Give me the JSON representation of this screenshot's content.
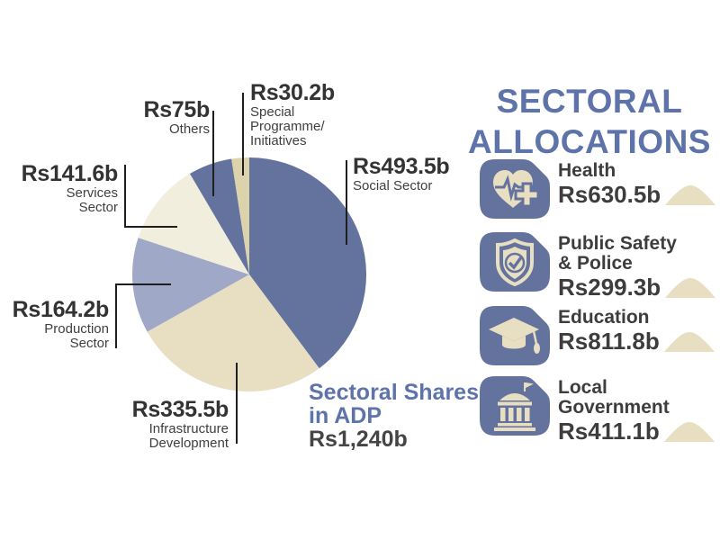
{
  "palette": {
    "slice_blue": "#64739e",
    "slice_lavender": "#a0a8c8",
    "slice_beige": "#e8dfc2",
    "slice_cream": "#f2eedd",
    "slice_tan": "#dcd2ab",
    "heading_blue": "#5d73a9",
    "text_dark": "#3d3d3d",
    "leader_line": "#1f1f1f"
  },
  "chart_data": {
    "type": "pie",
    "title": "Sectoral Shares in ADP",
    "total_label": "Rs1,240b",
    "total_value": 1240,
    "start": "12 o'clock, clockwise",
    "legend_position": "callout labels with leader lines",
    "slices": [
      {
        "name": "Social Sector",
        "value": 493.5,
        "value_label": "Rs493.5b",
        "color": "#64739e"
      },
      {
        "name": "Infrastructure Development",
        "value": 335.5,
        "value_label": "Rs335.5b",
        "color": "#e8dfc2"
      },
      {
        "name": "Production Sector",
        "value": 164.2,
        "value_label": "Rs164.2b",
        "color": "#a0a8c8"
      },
      {
        "name": "Services Sector",
        "value": 141.6,
        "value_label": "Rs141.6b",
        "color": "#f2eedd"
      },
      {
        "name": "Others",
        "value": 75,
        "value_label": "Rs75b",
        "color": "#64739e"
      },
      {
        "name": "Special Programme/Initiatives",
        "value": 30.2,
        "value_label": "Rs30.2b",
        "color": "#dcd2ab"
      }
    ]
  },
  "pie_labels": [
    {
      "l1": "Social Sector",
      "l2": "",
      "l3": ""
    },
    {
      "l1": "Infrastructure",
      "l2": "Development",
      "l3": ""
    },
    {
      "l1": "Production",
      "l2": "Sector",
      "l3": ""
    },
    {
      "l1": "Services",
      "l2": "Sector",
      "l3": ""
    },
    {
      "l1": "Others",
      "l2": "",
      "l3": ""
    },
    {
      "l1": "Special",
      "l2": "Programme/",
      "l3": "Initiatives"
    }
  ],
  "center_caption": {
    "line1": "Sectoral Shares",
    "line2": "in ADP",
    "total": "Rs1,240b"
  },
  "sectoral": {
    "heading_line1": "SECTORAL",
    "heading_line2": "ALLOCATIONS",
    "items": [
      {
        "label_line1": "Health",
        "label_line2": "",
        "value": "Rs630.5b",
        "icon": "heart-pulse-cross-icon"
      },
      {
        "label_line1": "Public Safety",
        "label_line2": "& Police",
        "value": "Rs299.3b",
        "icon": "shield-check-icon"
      },
      {
        "label_line1": "Education",
        "label_line2": "",
        "value": "Rs811.8b",
        "icon": "graduation-cap-icon"
      },
      {
        "label_line1": "Local",
        "label_line2": "Government",
        "value": "Rs411.1b",
        "icon": "bank-building-icon"
      }
    ]
  }
}
